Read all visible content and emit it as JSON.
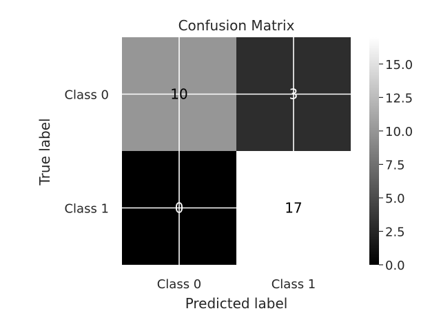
{
  "chart_data": {
    "type": "heatmap",
    "title": "Confusion Matrix",
    "xlabel": "Predicted label",
    "ylabel": "True label",
    "x_categories": [
      "Class 0",
      "Class 1"
    ],
    "y_categories": [
      "Class 0",
      "Class 1"
    ],
    "values": [
      [
        10,
        3
      ],
      [
        0,
        17
      ]
    ],
    "colormap": "gray",
    "colorbar": {
      "range": [
        0,
        17
      ],
      "ticks": [
        0.0,
        2.5,
        5.0,
        7.5,
        10.0,
        12.5,
        15.0
      ],
      "tick_labels": [
        "0.0",
        "2.5",
        "5.0",
        "7.5",
        "10.0",
        "12.5",
        "15.0"
      ]
    },
    "grid": true,
    "colors": {
      "text_on_dark": "#ffffff",
      "text_on_light": "#000000",
      "axis_text": "#262626",
      "grid": "#ffffff"
    }
  }
}
